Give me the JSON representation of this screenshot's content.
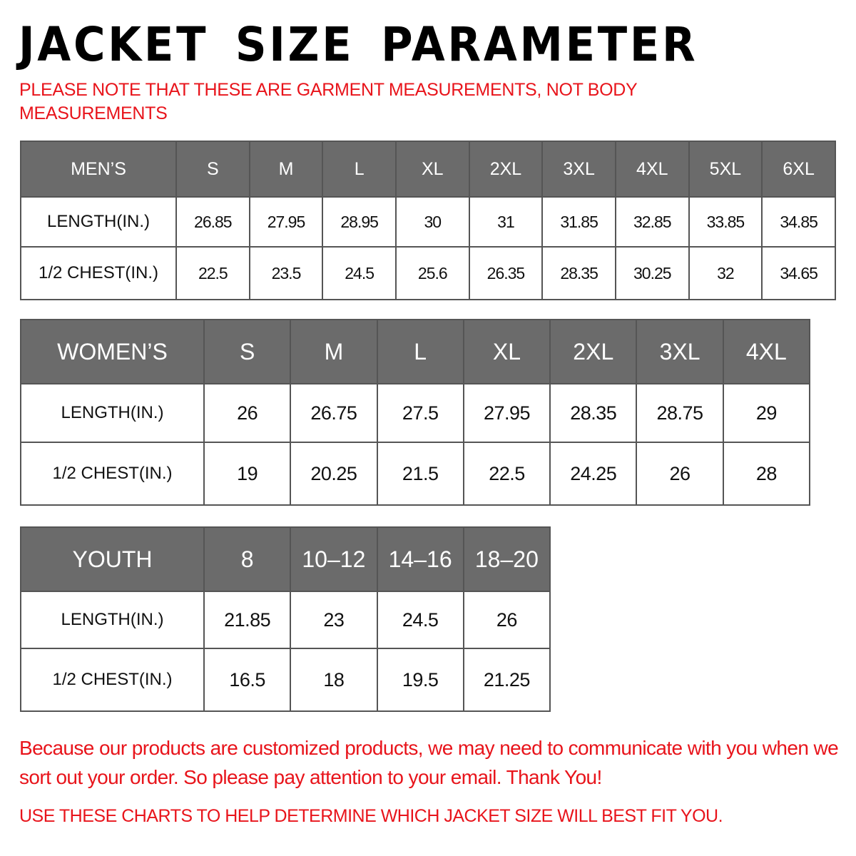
{
  "title": "JACKET SIZE PARAMETER",
  "note": "PLEASE NOTE THAT THESE ARE GARMENT MEASUREMENTS, NOT BODY MEASUREMENTS",
  "accent_color": "#e8141b",
  "header_color": "#6b6b6b",
  "tables": [
    {
      "name": "MEN'S",
      "header": [
        "MEN’S",
        "S",
        "M",
        "L",
        "XL",
        "2XL",
        "3XL",
        "4XL",
        "5XL",
        "6XL"
      ],
      "rows": [
        [
          "LENGTH(IN.)",
          "26.85",
          "27.95",
          "28.95",
          "30",
          "31",
          "31.85",
          "32.85",
          "33.85",
          "34.85"
        ],
        [
          "1/2 CHEST(IN.)",
          "22.5",
          "23.5",
          "24.5",
          "25.6",
          "26.35",
          "28.35",
          "30.25",
          "32",
          "34.65"
        ]
      ]
    },
    {
      "name": "WOMEN'S",
      "header": [
        "WOMEN’S",
        "S",
        "M",
        "L",
        "XL",
        "2XL",
        "3XL",
        "4XL"
      ],
      "rows": [
        [
          "LENGTH(IN.)",
          "26",
          "26.75",
          "27.5",
          "27.95",
          "28.35",
          "28.75",
          "29"
        ],
        [
          "1/2 CHEST(IN.)",
          "19",
          "20.25",
          "21.5",
          "22.5",
          "24.25",
          "26",
          "28"
        ]
      ]
    },
    {
      "name": "YOUTH",
      "header": [
        "YOUTH",
        "8",
        "10–12",
        "14–16",
        "18–20"
      ],
      "rows": [
        [
          "LENGTH(IN.)",
          "21.85",
          "23",
          "24.5",
          "26"
        ],
        [
          "1/2 CHEST(IN.)",
          "16.5",
          "18",
          "19.5",
          "21.25"
        ]
      ]
    }
  ],
  "footer_message": "Because our products are customized products, we may need to communicate with you when we sort out your order. So please pay attention to your email. Thank You!",
  "footer_note": "USE THESE CHARTS TO HELP DETERMINE WHICH JACKET SIZE WILL BEST FIT YOU."
}
